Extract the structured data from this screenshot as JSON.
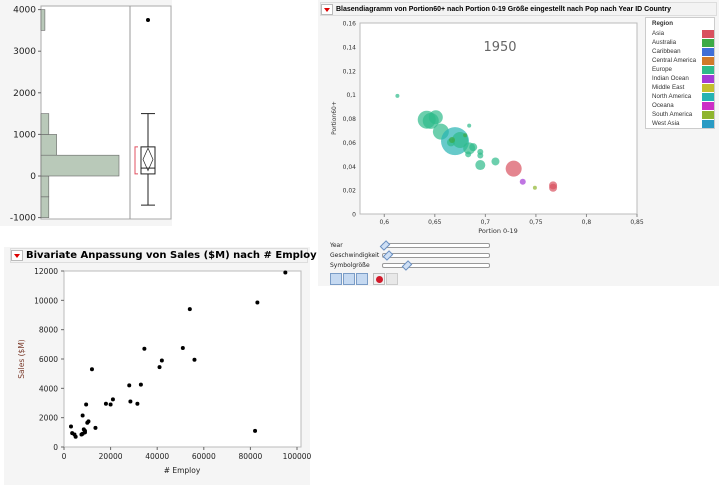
{
  "distribution": {
    "y_ticks": [
      "4000",
      "3000",
      "2000",
      "1000",
      "0",
      "-1000"
    ],
    "chart_data": {
      "type": "histogram+boxplot",
      "ylim": [
        -1000,
        4000
      ],
      "bins": [
        {
          "from": -1000,
          "to": -500,
          "count": 1
        },
        {
          "from": -500,
          "to": 0,
          "count": 1
        },
        {
          "from": 0,
          "to": 500,
          "count": 10
        },
        {
          "from": 500,
          "to": 1000,
          "count": 2
        },
        {
          "from": 1000,
          "to": 1500,
          "count": 1
        },
        {
          "from": 3500,
          "to": 4000,
          "count": 0.5
        }
      ],
      "box": {
        "whisker_low": -700,
        "q1": 50,
        "median": 190,
        "q3": 700,
        "whisker_high": 1500,
        "mean": 400,
        "mean_ci": [
          130,
          670
        ],
        "outliers": [
          3750
        ]
      },
      "bar_color": "#b9c9b9"
    }
  },
  "bubble": {
    "title": "Blasendiagramm von Portion60+ nach Portion 0-19 Größe eingestellt nach Pop nach Year ID Country",
    "year_label": "1950",
    "xlabel": "Portion 0-19",
    "ylabel": "Portion60+",
    "x_ticks": [
      "0,6",
      "0,65",
      "0,7",
      "0,75",
      "0,8",
      "0,85"
    ],
    "y_ticks": [
      "0,16",
      "0,14",
      "0,12",
      "0,1",
      "0,08",
      "0,06",
      "0,04",
      "0,02",
      "0"
    ],
    "legend": {
      "title": "Region",
      "items": [
        {
          "label": "Asia",
          "color": "#d9515f"
        },
        {
          "label": "Australia",
          "color": "#3caa45"
        },
        {
          "label": "Caribbean",
          "color": "#3f6fd8"
        },
        {
          "label": "Central America",
          "color": "#d07a2a"
        },
        {
          "label": "Europe",
          "color": "#2dbb8a"
        },
        {
          "label": "Indian Ocean",
          "color": "#a43ad6"
        },
        {
          "label": "Middle East",
          "color": "#c4bf2e"
        },
        {
          "label": "North America",
          "color": "#26b3b3"
        },
        {
          "label": "Oceana",
          "color": "#cc2fc6"
        },
        {
          "label": "South America",
          "color": "#8fb52e"
        },
        {
          "label": "West Asia",
          "color": "#2a9bc4"
        }
      ]
    },
    "controls": {
      "year": "Year",
      "speed": "Geschwindigkeit",
      "size": "Symbolgröße",
      "year_pos": 0,
      "speed_pos": 0.03,
      "size_pos": 0.22
    },
    "chart_data": {
      "type": "scatter",
      "xlim": [
        0.576,
        0.85
      ],
      "ylim": [
        0,
        0.16
      ],
      "points": [
        {
          "x": 0.613,
          "y": 0.099,
          "s": 2,
          "region": "Europe"
        },
        {
          "x": 0.642,
          "y": 0.079,
          "s": 9,
          "region": "Europe"
        },
        {
          "x": 0.646,
          "y": 0.078,
          "s": 8,
          "region": "Europe"
        },
        {
          "x": 0.651,
          "y": 0.081,
          "s": 7,
          "region": "Europe"
        },
        {
          "x": 0.656,
          "y": 0.069,
          "s": 8,
          "region": "Europe"
        },
        {
          "x": 0.67,
          "y": 0.061,
          "s": 14,
          "region": "North America"
        },
        {
          "x": 0.675,
          "y": 0.062,
          "s": 8,
          "region": "Europe"
        },
        {
          "x": 0.666,
          "y": 0.06,
          "s": 4,
          "region": "Europe"
        },
        {
          "x": 0.667,
          "y": 0.062,
          "s": 3,
          "region": "Australia"
        },
        {
          "x": 0.68,
          "y": 0.066,
          "s": 2,
          "region": "Australia"
        },
        {
          "x": 0.684,
          "y": 0.074,
          "s": 2,
          "region": "Europe"
        },
        {
          "x": 0.684,
          "y": 0.055,
          "s": 6,
          "region": "Europe"
        },
        {
          "x": 0.688,
          "y": 0.056,
          "s": 4,
          "region": "Europe"
        },
        {
          "x": 0.683,
          "y": 0.05,
          "s": 3,
          "region": "Europe"
        },
        {
          "x": 0.695,
          "y": 0.052,
          "s": 3,
          "region": "Europe"
        },
        {
          "x": 0.695,
          "y": 0.049,
          "s": 3,
          "region": "Europe"
        },
        {
          "x": 0.695,
          "y": 0.041,
          "s": 5,
          "region": "Europe"
        },
        {
          "x": 0.71,
          "y": 0.044,
          "s": 4,
          "region": "Europe"
        },
        {
          "x": 0.728,
          "y": 0.038,
          "s": 8,
          "region": "Asia"
        },
        {
          "x": 0.737,
          "y": 0.027,
          "s": 3,
          "region": "Indian Ocean"
        },
        {
          "x": 0.749,
          "y": 0.022,
          "s": 2,
          "region": "South America"
        },
        {
          "x": 0.767,
          "y": 0.024,
          "s": 4,
          "region": "Asia"
        },
        {
          "x": 0.767,
          "y": 0.022,
          "s": 4,
          "region": "Asia"
        }
      ]
    }
  },
  "bivariate": {
    "title": "Bivariate Anpassung von Sales ($M) nach # Employ",
    "xlabel": "# Employ",
    "ylabel": "Sales ($M)",
    "x_ticks": [
      "0",
      "20000",
      "40000",
      "60000",
      "80000",
      "100000"
    ],
    "y_ticks": [
      "12000",
      "10000",
      "8000",
      "6000",
      "4000",
      "2000",
      "0"
    ],
    "chart_data": {
      "type": "scatter",
      "xlim": [
        0,
        100000
      ],
      "ylim": [
        0,
        12000
      ],
      "points": [
        [
          3000,
          1400
        ],
        [
          3500,
          950
        ],
        [
          4500,
          850
        ],
        [
          5000,
          700
        ],
        [
          7500,
          850
        ],
        [
          8000,
          900
        ],
        [
          8000,
          2150
        ],
        [
          8500,
          1200
        ],
        [
          9000,
          1000
        ],
        [
          9000,
          1100
        ],
        [
          9500,
          2900
        ],
        [
          10000,
          1650
        ],
        [
          10500,
          1750
        ],
        [
          12000,
          5300
        ],
        [
          13500,
          1300
        ],
        [
          18000,
          2950
        ],
        [
          20000,
          2900
        ],
        [
          21000,
          3250
        ],
        [
          28000,
          4200
        ],
        [
          28500,
          3100
        ],
        [
          31500,
          2950
        ],
        [
          33000,
          4250
        ],
        [
          34500,
          6700
        ],
        [
          41000,
          5450
        ],
        [
          42000,
          5900
        ],
        [
          51000,
          6750
        ],
        [
          54000,
          9400
        ],
        [
          56000,
          5950
        ],
        [
          82000,
          1100
        ],
        [
          83000,
          9850
        ],
        [
          95000,
          11900
        ]
      ]
    }
  }
}
